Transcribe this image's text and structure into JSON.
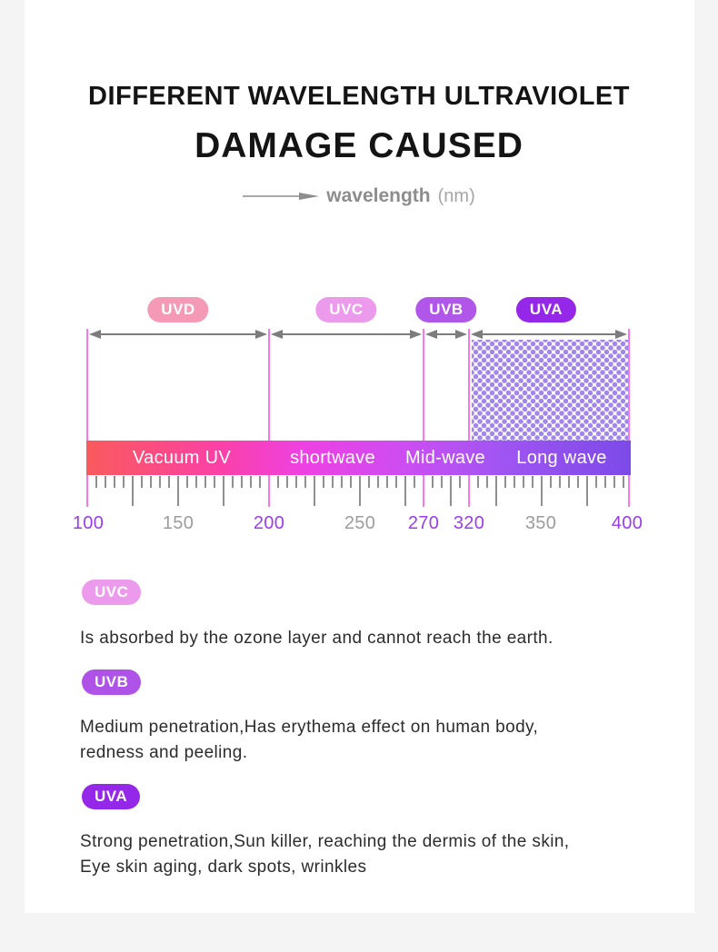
{
  "page": {
    "background": "#f4f4f4",
    "card_background": "#ffffff"
  },
  "header": {
    "title_line1": "DIFFERENT WAVELENGTH ULTRAVIOLET",
    "title_line2": "DAMAGE CAUSED",
    "axis_label": "wavelength",
    "axis_unit": "(nm)"
  },
  "spectrum": {
    "bands": [
      {
        "name": "UVD",
        "badge_color": "#f59ab6",
        "range_nm": "100-200"
      },
      {
        "name": "UVC",
        "badge_color": "#ec9bec",
        "range_nm": "200-270"
      },
      {
        "name": "UVB",
        "badge_color": "#b056e9",
        "range_nm": "270-320"
      },
      {
        "name": "UVA",
        "badge_color": "#9527e9",
        "range_nm": "320-400"
      }
    ],
    "bar_segments": [
      {
        "label": "Vacuum UV"
      },
      {
        "label": "shortwave"
      },
      {
        "label": "Mid-wave"
      },
      {
        "label": "Long wave"
      }
    ],
    "bar_gradient": [
      "#f95a5c",
      "#fb41a5",
      "#ee41e3",
      "#c94ef2",
      "#a055f2",
      "#7c4ae8"
    ],
    "scale_labels": [
      {
        "value": "100",
        "color": "#9a3cec"
      },
      {
        "value": "150",
        "color": "#9c9c9c"
      },
      {
        "value": "200",
        "color": "#9a3cec"
      },
      {
        "value": "250",
        "color": "#9c9c9c"
      },
      {
        "value": "270",
        "color": "#9a3cec"
      },
      {
        "value": "320",
        "color": "#9a3cec"
      },
      {
        "value": "350",
        "color": "#9c9c9c"
      },
      {
        "value": "400",
        "color": "#9a3cec"
      }
    ],
    "boundary_line_color": "#f876f0",
    "hatch_dot_color": "#a286ec"
  },
  "legend": [
    {
      "badge": "UVC",
      "badge_color": "#ec9bec",
      "lines": [
        "Is absorbed by the ozone layer and cannot reach the earth."
      ]
    },
    {
      "badge": "UVB",
      "badge_color": "#ae52e8",
      "lines": [
        "Medium penetration,Has erythema effect on human body,",
        "redness and peeling."
      ]
    },
    {
      "badge": "UVA",
      "badge_color": "#9527e9",
      "lines": [
        "Strong penetration,Sun killer, reaching the dermis of the skin,",
        "Eye skin aging, dark spots, wrinkles"
      ]
    }
  ]
}
